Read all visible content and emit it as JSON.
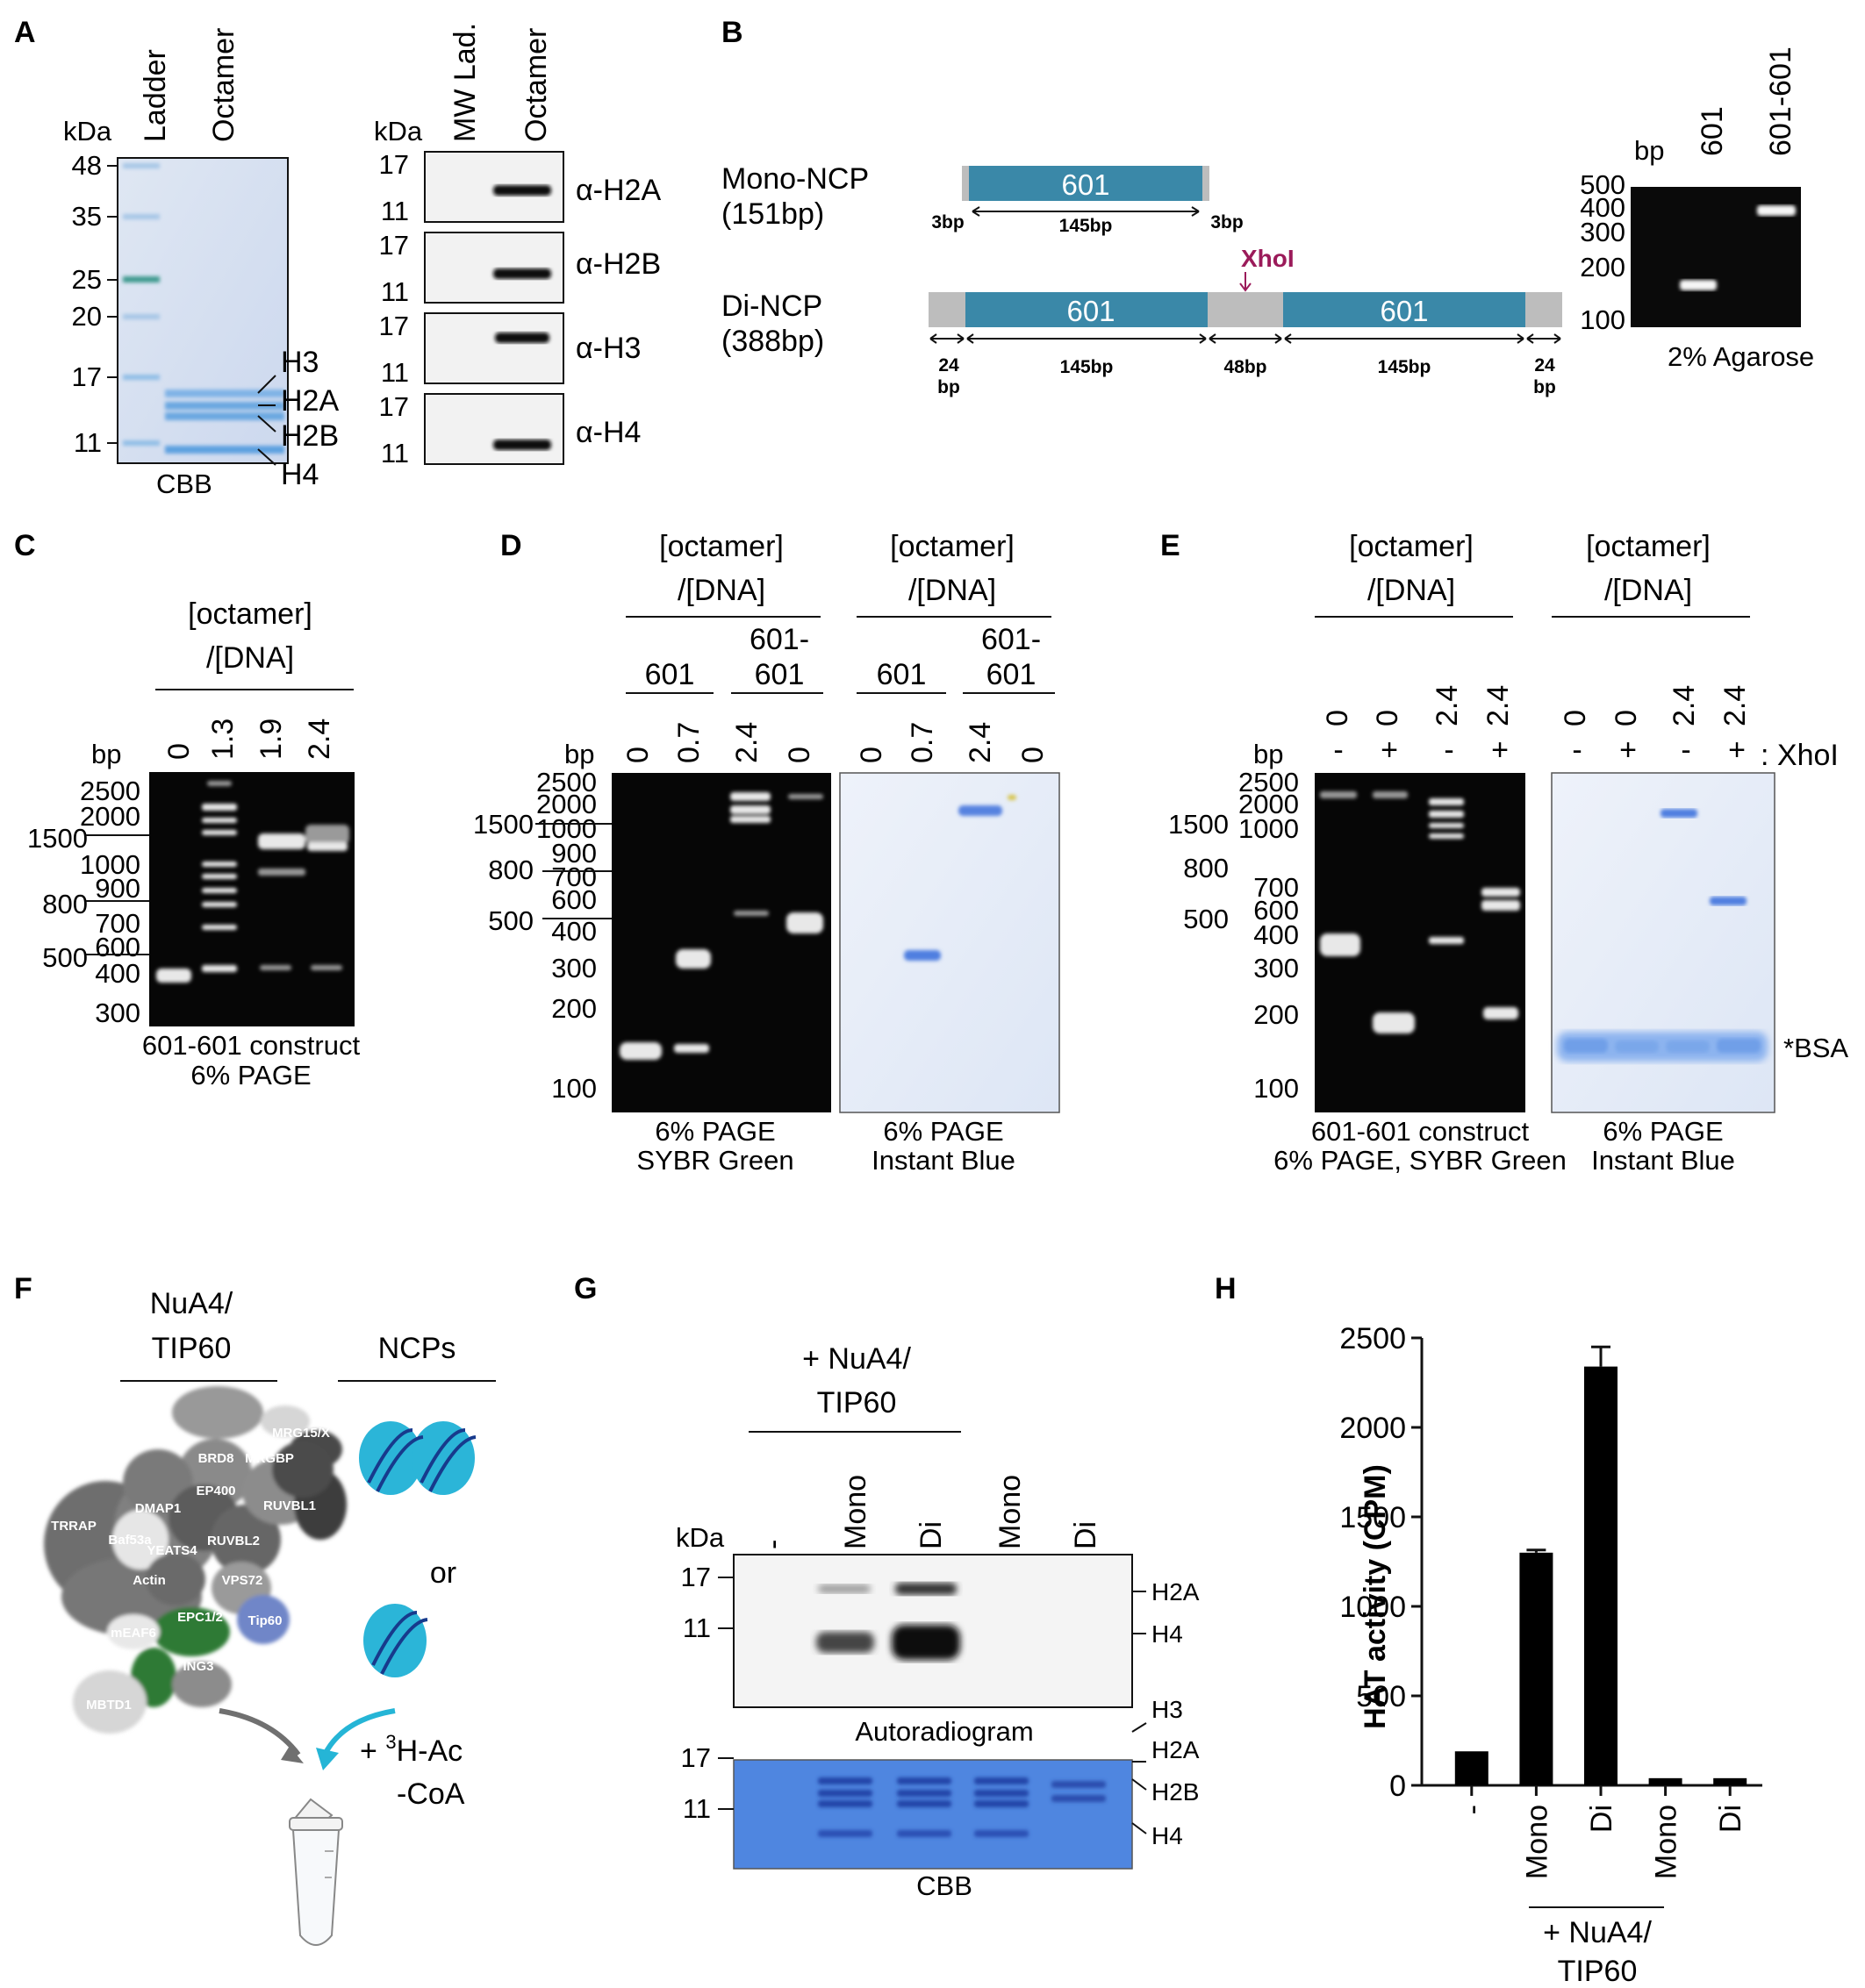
{
  "panels": [
    "A",
    "B",
    "C",
    "D",
    "E",
    "F",
    "G",
    "H"
  ],
  "a": {
    "lanes": [
      "Ladder",
      "Octamer"
    ],
    "kda": "kDa",
    "marks": [
      "48",
      "35",
      "25",
      "20",
      "17",
      "11"
    ],
    "histones": [
      "H3",
      "H2A",
      "H2B",
      "H4"
    ],
    "stain": "CBB",
    "wb_lanes": [
      "MW Lad.",
      "Octamer"
    ],
    "wb_kda": "kDa",
    "wb_marks": [
      "17",
      "11"
    ],
    "antibodies": [
      "α-H2A",
      "α-H2B",
      "α-H3",
      "α-H4"
    ]
  },
  "b": {
    "mono_title": "Mono-NCP",
    "mono_len": "(151bp)",
    "di_title": "Di-NCP",
    "di_len": "(388bp)",
    "seq": "601",
    "flank_mono": "3bp",
    "core": "145bp",
    "linker": "48bp",
    "flank_di_n": "24",
    "flank_di_u": "bp",
    "site": "XhoI",
    "gel_bp": "bp",
    "gel_lanes": [
      "601",
      "601-601"
    ],
    "gel_marks": [
      "500",
      "400",
      "300",
      "200",
      "100"
    ],
    "gel_caption": "2% Agarose",
    "colors": {
      "seq": "#3a88a8",
      "flank": "#bdbdbd",
      "site": "#9b1b5a"
    }
  },
  "c": {
    "header1": "[octamer]",
    "header2": "/[DNA]",
    "bp": "bp",
    "ratios": [
      "0",
      "1.3",
      "1.9",
      "2.4"
    ],
    "marks": [
      "2500",
      "2000",
      "1500",
      "1000",
      "900",
      "800",
      "700",
      "600",
      "500",
      "400",
      "300"
    ],
    "caption1": "601-601 construct",
    "caption2": "6% PAGE"
  },
  "d": {
    "header1": "[octamer]",
    "header2": "/[DNA]",
    "sub_a": "601",
    "sub_b1": "601-",
    "sub_b2": "601",
    "bp": "bp",
    "ratios": [
      "0",
      "0.7",
      "2.4",
      "0"
    ],
    "marks": [
      "2500",
      "2000",
      "1500",
      "1000",
      "900",
      "800",
      "700",
      "600",
      "500",
      "400",
      "300",
      "200",
      "100"
    ],
    "caption_l1": "6% PAGE",
    "caption_l2": "SYBR Green",
    "caption_r1": "6% PAGE",
    "caption_r2": "Instant Blue"
  },
  "e": {
    "header1": "[octamer]",
    "header2": "/[DNA]",
    "ratios": [
      "0",
      "0",
      "2.4",
      "2.4"
    ],
    "xhoi": [
      "-",
      "+",
      "-",
      "+"
    ],
    "xhoi_label": ": XhoI",
    "bp": "bp",
    "marks": [
      "2500",
      "2000",
      "1500",
      "1000",
      "800",
      "700",
      "600",
      "500",
      "400",
      "300",
      "200",
      "100"
    ],
    "bsa": "*BSA",
    "caption_l1": "601-601 construct",
    "caption_l2": "6% PAGE, SYBR Green",
    "caption_r1": "6% PAGE",
    "caption_r2": "Instant Blue"
  },
  "f": {
    "complex1": "NuA4/",
    "complex2": "TIP60",
    "ncps": "NCPs",
    "or": "or",
    "reagent_a": "+ ",
    "reagent_sup": "3",
    "reagent_b": "H-Ac",
    "reagent_c": "-CoA",
    "subunits": [
      "TRRAP",
      "Baf53a",
      "DMAP1",
      "EP400",
      "BRD8",
      "MRGBP",
      "MRG15/X",
      "RUVBL1",
      "RUVBL2",
      "YEATS4",
      "Actin",
      "VPS72",
      "EPC1/2",
      "Tip60",
      "mEAF6",
      "ING3",
      "MBTD1"
    ]
  },
  "g": {
    "header1": "+ NuA4/",
    "header2": "TIP60",
    "kda": "kDa",
    "lanes": [
      "-",
      "Mono",
      "Di",
      "Mono",
      "Di"
    ],
    "marks": [
      "17",
      "11"
    ],
    "auto_bands": [
      "H2A",
      "H4"
    ],
    "auto_caption": "Autoradiogram",
    "cbb_bands": [
      "H3",
      "H2A",
      "H2B",
      "H4"
    ],
    "cbb_caption": "CBB"
  },
  "chart_data": {
    "type": "bar",
    "categories": [
      "-",
      "Mono",
      "Di",
      "Mono",
      "Di"
    ],
    "values": [
      190,
      1300,
      2340,
      40,
      40
    ],
    "errors": [
      0,
      15,
      110,
      0,
      0
    ],
    "ylabel": "HAT activity (CPM)",
    "xlabel": "",
    "ylim": [
      0,
      2500
    ],
    "yticks": [
      0,
      500,
      1000,
      1500,
      2000,
      2500
    ],
    "group_label1": "+ NuA4/",
    "group_label2": "TIP60",
    "grid": false,
    "bar_color": "#000000"
  }
}
